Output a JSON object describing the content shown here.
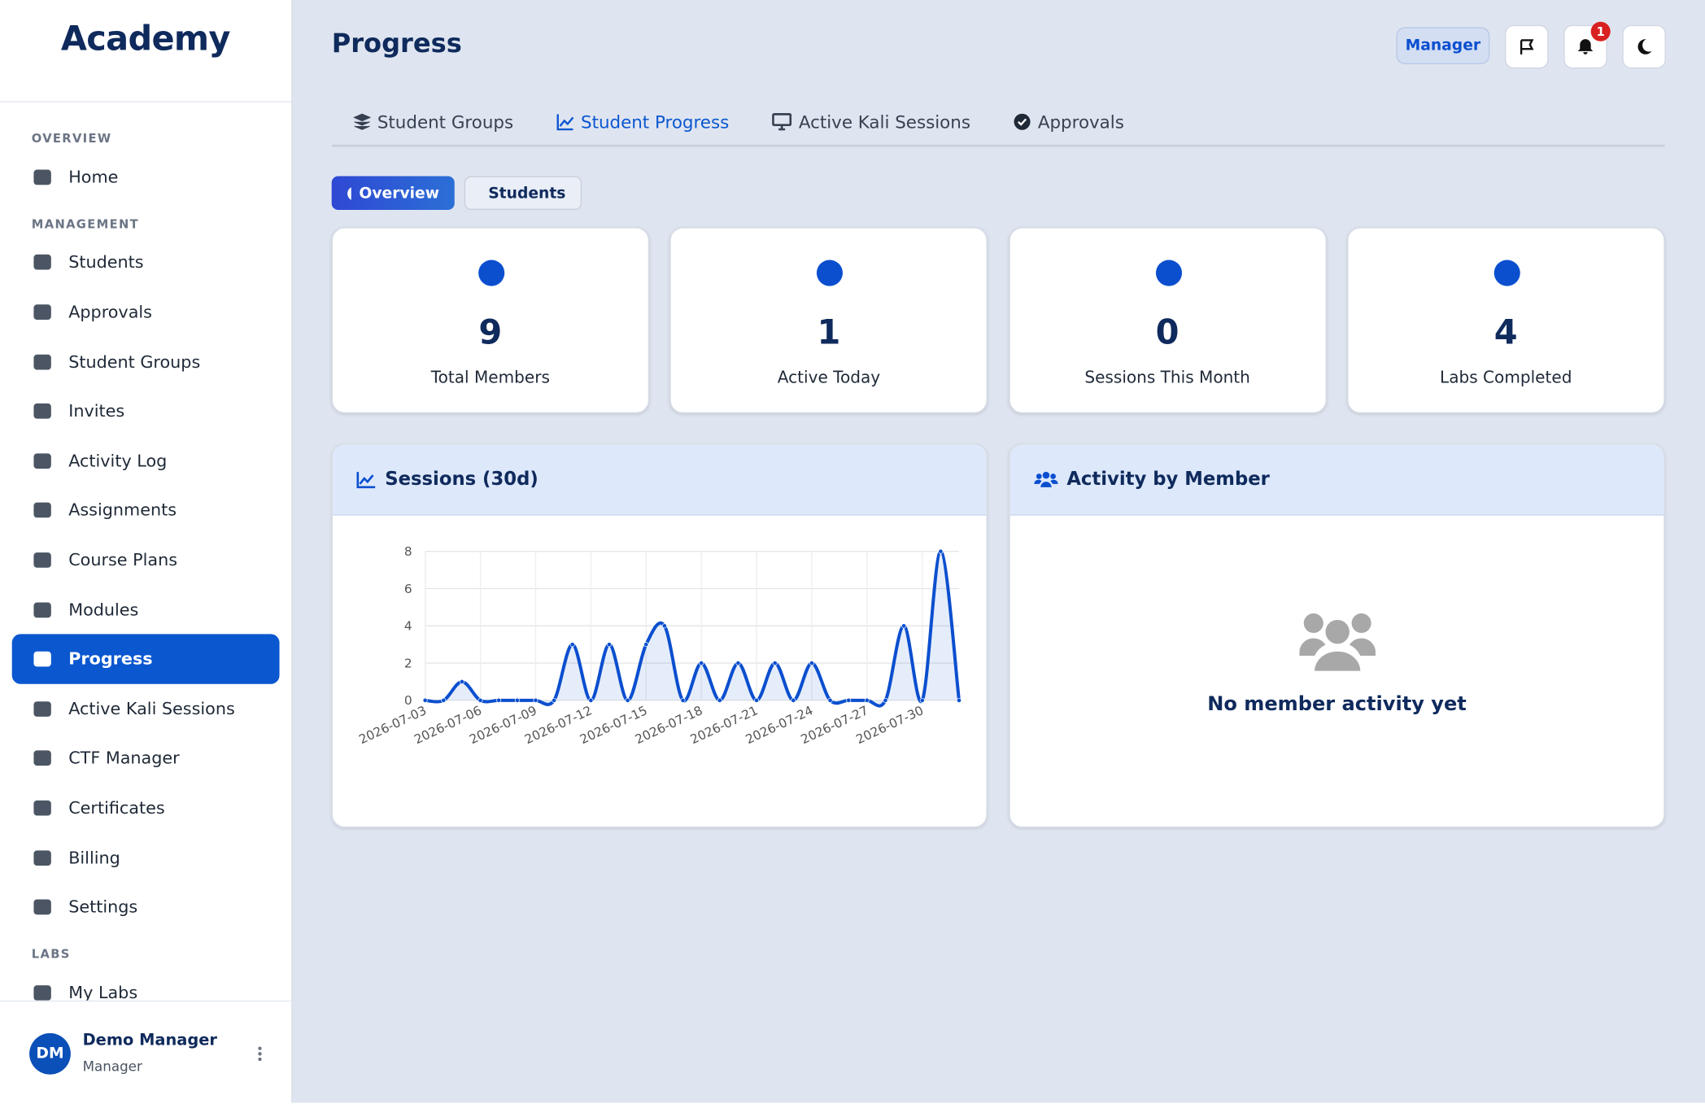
{
  "brand": "Academy",
  "sidebar": {
    "sections": [
      {
        "heading": "OVERVIEW",
        "items": [
          "Home"
        ]
      },
      {
        "heading": "MANAGEMENT",
        "items": [
          "Students",
          "Approvals",
          "Student Groups",
          "Invites",
          "Activity Log",
          "Assignments",
          "Course Plans",
          "Modules",
          "Progress",
          "Active Kali Sessions",
          "CTF Manager",
          "Certificates",
          "Billing",
          "Settings"
        ]
      },
      {
        "heading": "LABS",
        "items": [
          "My Labs"
        ]
      }
    ]
  },
  "user": {
    "initials": "DM",
    "name": "Demo Manager",
    "role": "Manager"
  },
  "header": {
    "title": "Progress",
    "role_badge": "Manager",
    "notifications": 1
  },
  "tabs": [
    "Student Groups",
    "Student Progress",
    "Active Kali Sessions",
    "Approvals"
  ],
  "subtabs": [
    "Overview",
    "Students"
  ],
  "stats": [
    {
      "value": 9,
      "label": "Total Members"
    },
    {
      "value": 1,
      "label": "Active Today"
    },
    {
      "value": 0,
      "label": "Sessions This Month"
    },
    {
      "value": 4,
      "label": "Labs Completed"
    }
  ],
  "activity": {
    "title": "Activity by Member",
    "empty": "No member activity yet"
  },
  "chart_data": {
    "type": "line",
    "title": "Sessions (30d)",
    "categories": [
      "2026-07-03",
      null,
      null,
      "2026-07-06",
      null,
      null,
      "2026-07-09",
      null,
      null,
      "2026-07-12",
      null,
      null,
      "2026-07-15",
      null,
      null,
      "2026-07-18",
      null,
      null,
      "2026-07-21",
      null,
      null,
      "2026-07-24",
      null,
      null,
      "2026-07-27",
      null,
      null,
      "2026-07-30",
      null,
      null
    ],
    "values": [
      0,
      0,
      1,
      0,
      0,
      0,
      0,
      0,
      3,
      0,
      3,
      0,
      3,
      4,
      0,
      2,
      0,
      2,
      0,
      2,
      0,
      2,
      0,
      0,
      0,
      0,
      4,
      0,
      8,
      0
    ],
    "color": "#0b4fcf",
    "ylim": [
      0,
      8
    ],
    "yticks": [
      0,
      2,
      4,
      6,
      8
    ],
    "grid": true
  }
}
